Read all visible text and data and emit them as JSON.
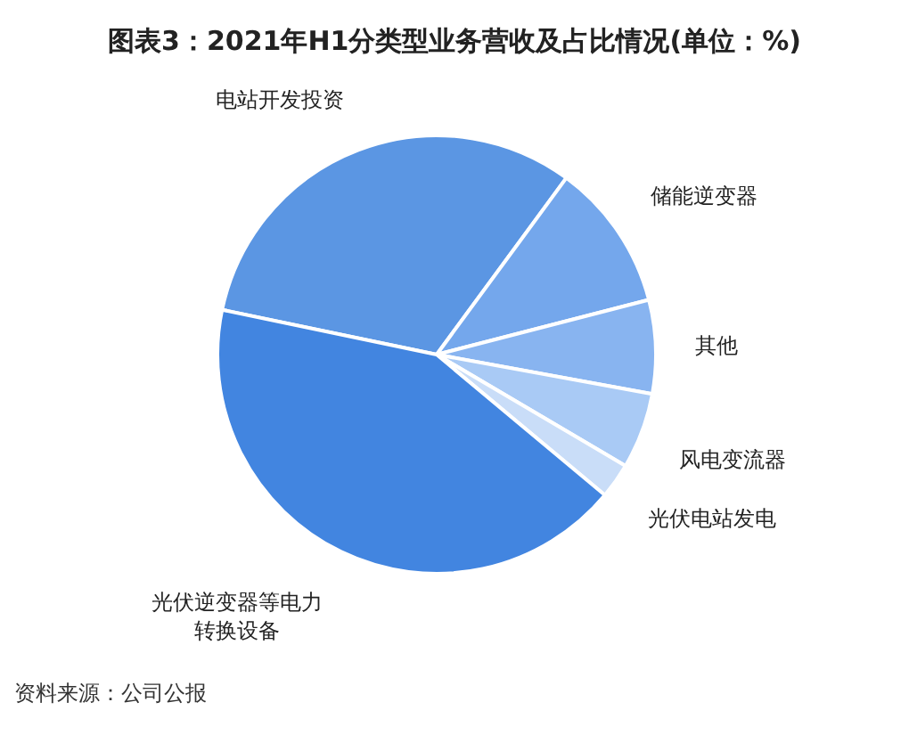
{
  "chart_data": {
    "type": "pie",
    "title": "图表3：2021年H1分类型业务营收及占比情况(单位：%)",
    "categories": [
      "电站开发投资",
      "储能逆变器",
      "其他",
      "风电变流器",
      "光伏电站发电",
      "光伏逆变器等电力转换设备"
    ],
    "values": [
      31.8,
      10.9,
      6.9,
      5.6,
      2.6,
      42.2
    ],
    "colors": [
      "#5b96e3",
      "#74a7ec",
      "#88b4f0",
      "#a9caf5",
      "#c9ddf8",
      "#4285e0"
    ],
    "annotations": [
      "资料来源：公司公报"
    ]
  }
}
